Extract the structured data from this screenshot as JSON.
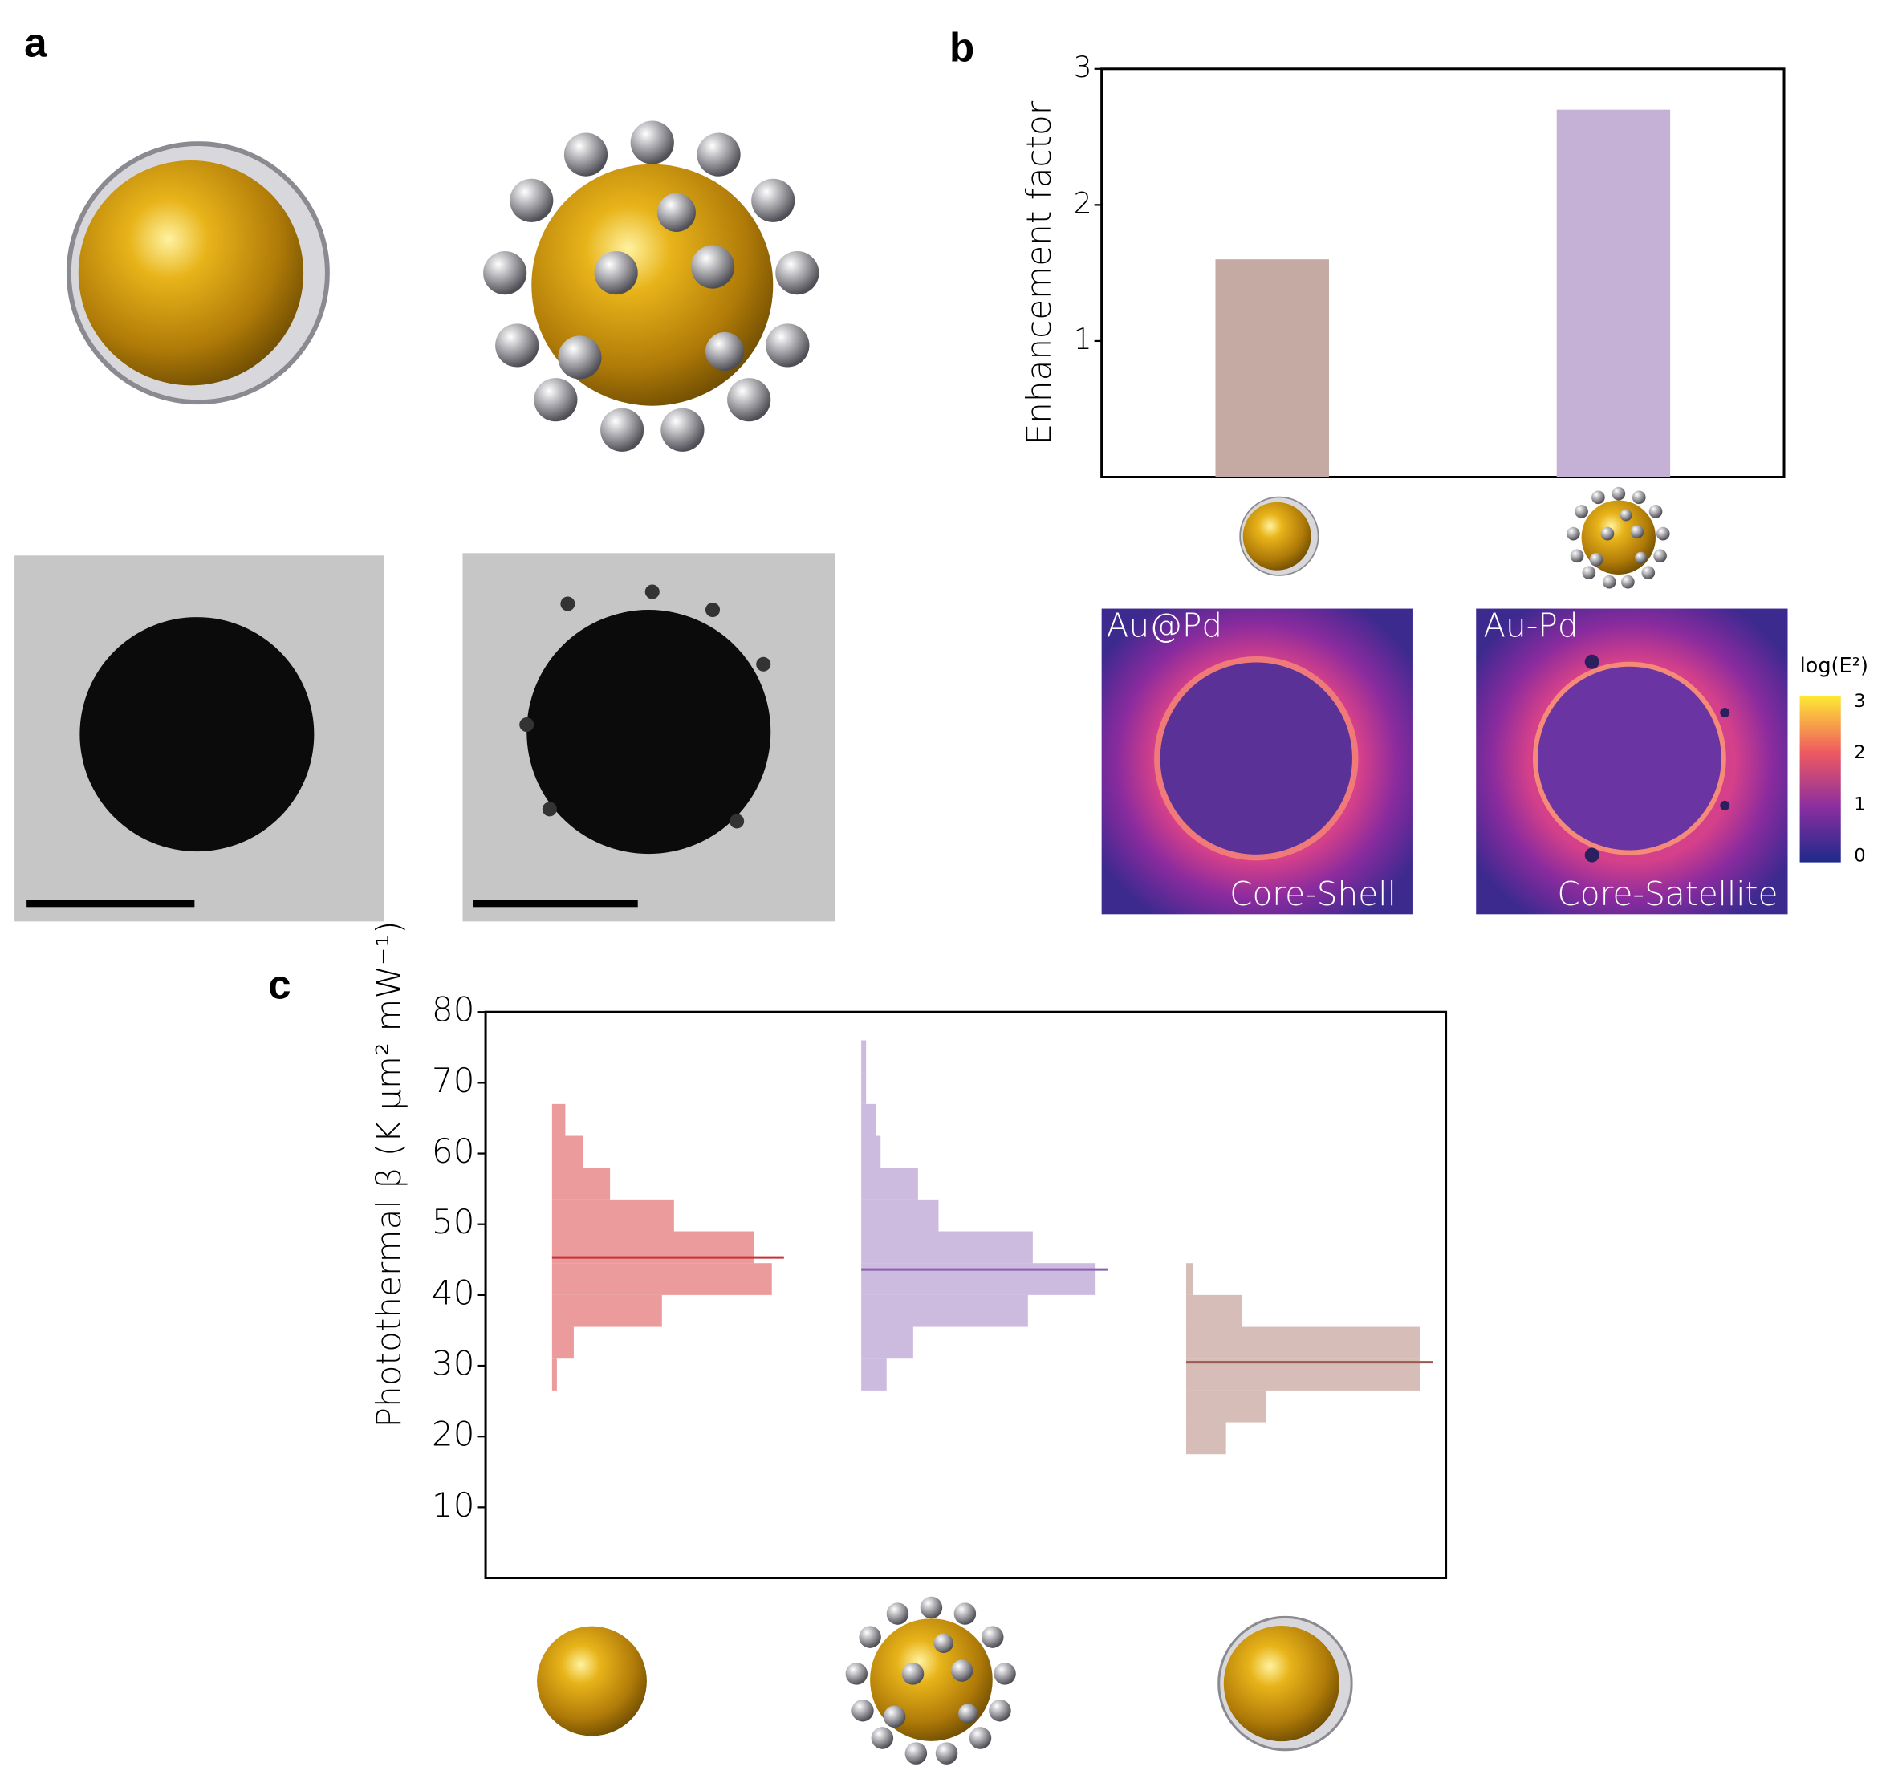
{
  "panels": {
    "a": "a",
    "b": "b",
    "c": "c"
  },
  "heatmaps": {
    "left_top": "Au@Pd",
    "left_bottom": "Core-Shell",
    "right_top": "Au-Pd",
    "right_bottom": "Core-Satellite",
    "colorbar_label": "log(E²)",
    "colorbar_ticks": [
      0,
      1,
      2,
      3
    ]
  },
  "chart_data": [
    {
      "type": "bar",
      "ylabel": "Enhancement factor",
      "categories": [
        null,
        null
      ],
      "values": [
        1.6,
        2.7
      ],
      "colors": [
        "#c4aaa2",
        "#c6b1d6"
      ],
      "ylim": [
        0,
        3
      ],
      "yticks": [
        1,
        2,
        3
      ]
    },
    {
      "type": "histogram",
      "orientation": "horizontal",
      "ylabel": "Photothermal β  (K µm² mW⁻¹)",
      "ylim": [
        0,
        80
      ],
      "yticks": [
        10,
        20,
        30,
        40,
        50,
        60,
        70,
        80
      ],
      "series": [
        {
          "color": "#e88a8a",
          "line_color": "#c8303a",
          "median": 45.3,
          "bins": [
            26.5,
            31,
            35.5,
            40,
            44.5,
            49,
            53.5,
            58,
            62.5,
            67
          ],
          "counts": [
            4,
            18,
            91,
            182,
            167,
            101,
            48,
            26,
            11
          ]
        },
        {
          "color": "#c4aed9",
          "line_color": "#8a5fb0",
          "median": 43.6,
          "bins": [
            26.5,
            31,
            35.5,
            40,
            44.5,
            49,
            53.5,
            58,
            62.5,
            67,
            71.5,
            76
          ],
          "counts": [
            21,
            43,
            138,
            194,
            142,
            64,
            47,
            16,
            12,
            4,
            4
          ]
        },
        {
          "color": "#cfb2aa",
          "line_color": "#9a5a50",
          "median": 30.5,
          "bins": [
            17.5,
            22,
            26.5,
            31,
            35.5,
            40,
            44.5
          ],
          "counts": [
            33,
            66,
            194,
            194,
            46,
            6
          ]
        }
      ]
    }
  ]
}
